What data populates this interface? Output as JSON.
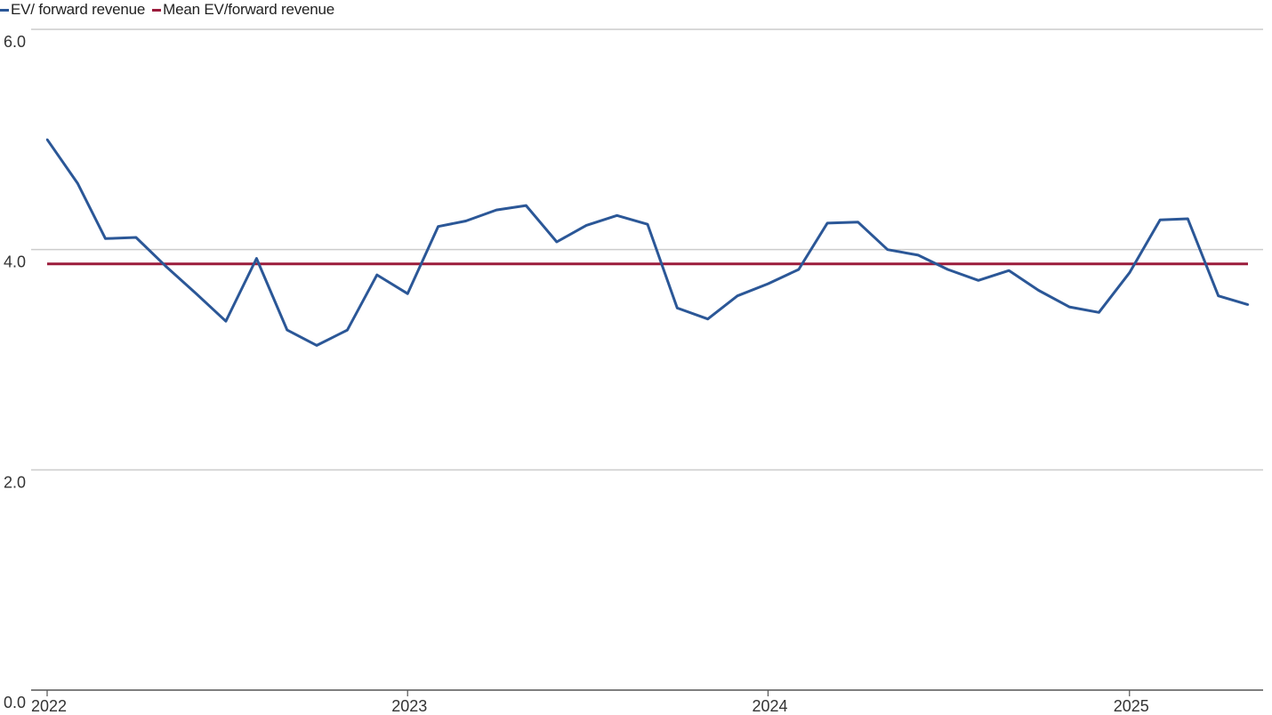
{
  "legend": {
    "series1_label": "EV/ forward revenue",
    "series2_label": "Mean EV/forward revenue"
  },
  "chart_data": {
    "type": "line",
    "x_ticks": [
      "2022",
      "2023",
      "2024",
      "2025"
    ],
    "y_ticks": [
      "0.0",
      "2.0",
      "4.0",
      "6.0"
    ],
    "ylim": [
      0,
      6
    ],
    "xlim": [
      "2022-01-01",
      "2025-05-01"
    ],
    "grid": true,
    "legend_position": "top-left",
    "colors": {
      "series": "#2b5797",
      "mean": "#9b1b3b",
      "grid": "#cccccc",
      "axis": "#555555"
    },
    "series": [
      {
        "name": "EV/ forward revenue",
        "x": [
          "2022-01-01",
          "2022-02-01",
          "2022-03-01",
          "2022-04-01",
          "2022-05-01",
          "2022-06-01",
          "2022-07-01",
          "2022-08-01",
          "2022-09-01",
          "2022-10-01",
          "2022-11-01",
          "2022-12-01",
          "2023-01-01",
          "2023-02-01",
          "2023-03-01",
          "2023-04-01",
          "2023-05-01",
          "2023-06-01",
          "2023-07-01",
          "2023-08-01",
          "2023-09-01",
          "2023-10-01",
          "2023-11-01",
          "2023-12-01",
          "2024-01-01",
          "2024-02-01",
          "2024-03-01",
          "2024-04-01",
          "2024-05-01",
          "2024-06-01",
          "2024-07-01",
          "2024-08-01",
          "2024-09-01",
          "2024-10-01",
          "2024-11-01",
          "2024-12-01",
          "2025-01-01",
          "2025-02-01",
          "2025-03-01",
          "2025-04-01",
          "2025-05-01"
        ],
        "values": [
          5.0,
          4.6,
          4.1,
          4.11,
          3.85,
          3.6,
          3.35,
          3.92,
          3.27,
          3.13,
          3.27,
          3.77,
          3.6,
          4.21,
          4.26,
          4.36,
          4.4,
          4.07,
          4.22,
          4.31,
          4.23,
          3.47,
          3.37,
          3.58,
          3.69,
          3.82,
          4.24,
          4.25,
          4.0,
          3.95,
          3.82,
          3.72,
          3.81,
          3.63,
          3.48,
          3.43,
          3.79,
          4.27,
          4.28,
          3.58,
          3.5
        ]
      },
      {
        "name": "Mean EV/forward revenue",
        "x": [
          "2022-01-01",
          "2025-05-01"
        ],
        "values": [
          3.87,
          3.87
        ]
      }
    ]
  }
}
